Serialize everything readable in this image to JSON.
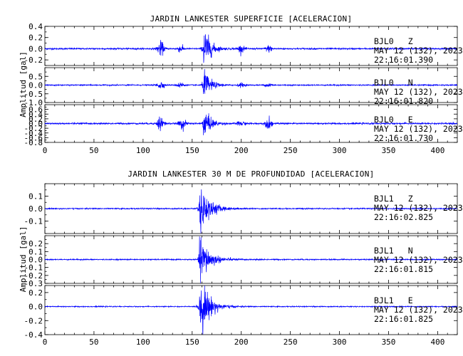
{
  "chart_data": {
    "type": "line",
    "trace_color": "#0000ff",
    "groups": [
      {
        "title": "JARDIN LANKESTER SUPERFICIE [ACELERACION]",
        "ylabel": "Amplitud [gal]",
        "xlim": [
          0,
          420
        ],
        "xticks": [
          0,
          50,
          100,
          150,
          200,
          250,
          300,
          350,
          400
        ],
        "grid": false,
        "panels": [
          {
            "station": "BJL0",
            "component": "Z",
            "date": "MAY 12 (132), 2023",
            "time": "22:16:01.390",
            "ylim": [
              -0.3,
              0.4
            ],
            "yticks": [
              "0.4",
              "0.2",
              "0.0",
              "-0.2"
            ],
            "ytick_values": [
              0.4,
              0.2,
              0.0,
              -0.2
            ],
            "noise": 0.012,
            "peak": 0.38,
            "peak_time": 162,
            "bursts": [
              {
                "t": 118,
                "a": 0.11
              },
              {
                "t": 138,
                "a": 0.05
              },
              {
                "t": 200,
                "a": 0.05
              },
              {
                "t": 228,
                "a": 0.05
              }
            ]
          },
          {
            "station": "BJL0",
            "component": "N",
            "date": "MAY 12 (132), 2023",
            "time": "22:16:01.820",
            "ylim": [
              -1.0,
              1.0
            ],
            "yticks": [
              "0.5",
              "0.0",
              "-0.5",
              "-1.0"
            ],
            "ytick_values": [
              0.5,
              0.0,
              -0.5,
              -1.0
            ],
            "noise": 0.03,
            "peak": 0.85,
            "peak_time": 162,
            "bursts": [
              {
                "t": 118,
                "a": 0.2
              },
              {
                "t": 138,
                "a": 0.15
              },
              {
                "t": 200,
                "a": 0.1
              },
              {
                "t": 228,
                "a": 0.1
              }
            ]
          },
          {
            "station": "BJL0",
            "component": "E",
            "date": "MAY 12 (132), 2023",
            "time": "22:16:01.730",
            "ylim": [
              -0.8,
              0.8
            ],
            "yticks": [
              "0.6",
              "0.4",
              "0.2",
              "0.0",
              "-0.2",
              "-0.4",
              "-0.6",
              "-0.8"
            ],
            "ytick_values": [
              0.6,
              0.4,
              0.2,
              0.0,
              -0.2,
              -0.4,
              -0.6,
              -0.8
            ],
            "noise": 0.03,
            "peak": 0.62,
            "peak_time": 162,
            "bursts": [
              {
                "t": 118,
                "a": 0.3
              },
              {
                "t": 140,
                "a": 0.2
              },
              {
                "t": 200,
                "a": 0.1
              },
              {
                "t": 228,
                "a": 0.2
              }
            ]
          }
        ]
      },
      {
        "title": "JARDIN LANKESTER 30 M DE PROFUNDIDAD [ACELERACION]",
        "ylabel": "Amplitud [gal]",
        "xlim": [
          0,
          420
        ],
        "xticks": [
          0,
          50,
          100,
          150,
          200,
          250,
          300,
          350,
          400
        ],
        "grid": false,
        "panels": [
          {
            "station": "BJL1",
            "component": "Z",
            "date": "MAY 12 (132), 2023",
            "time": "22:16:02.825",
            "ylim": [
              -0.2,
              0.2
            ],
            "yticks": [
              "0.1",
              "0.0",
              "-0.1"
            ],
            "ytick_values": [
              0.1,
              0.0,
              -0.1
            ],
            "noise": 0.004,
            "peak": 0.19,
            "peak_time": 158,
            "bursts": []
          },
          {
            "station": "BJL1",
            "component": "N",
            "date": "MAY 12 (132), 2023",
            "time": "22:16:01.815",
            "ylim": [
              -0.3,
              0.3
            ],
            "yticks": [
              "0.2",
              "0.1",
              "0.0",
              "-0.1",
              "-0.2",
              "-0.3"
            ],
            "ytick_values": [
              0.2,
              0.1,
              0.0,
              -0.1,
              -0.2,
              -0.3
            ],
            "noise": 0.006,
            "peak": 0.28,
            "peak_time": 158,
            "bursts": []
          },
          {
            "station": "BJL1",
            "component": "E",
            "date": "MAY 12 (132), 2023",
            "time": "22:16:01.825",
            "ylim": [
              -0.4,
              0.3
            ],
            "yticks": [
              "0.2",
              "0.0",
              "-0.2",
              "-0.4"
            ],
            "ytick_values": [
              0.2,
              0.0,
              -0.2,
              -0.4
            ],
            "noise": 0.006,
            "peak": 0.38,
            "peak_time": 158,
            "bursts": []
          }
        ]
      }
    ]
  }
}
